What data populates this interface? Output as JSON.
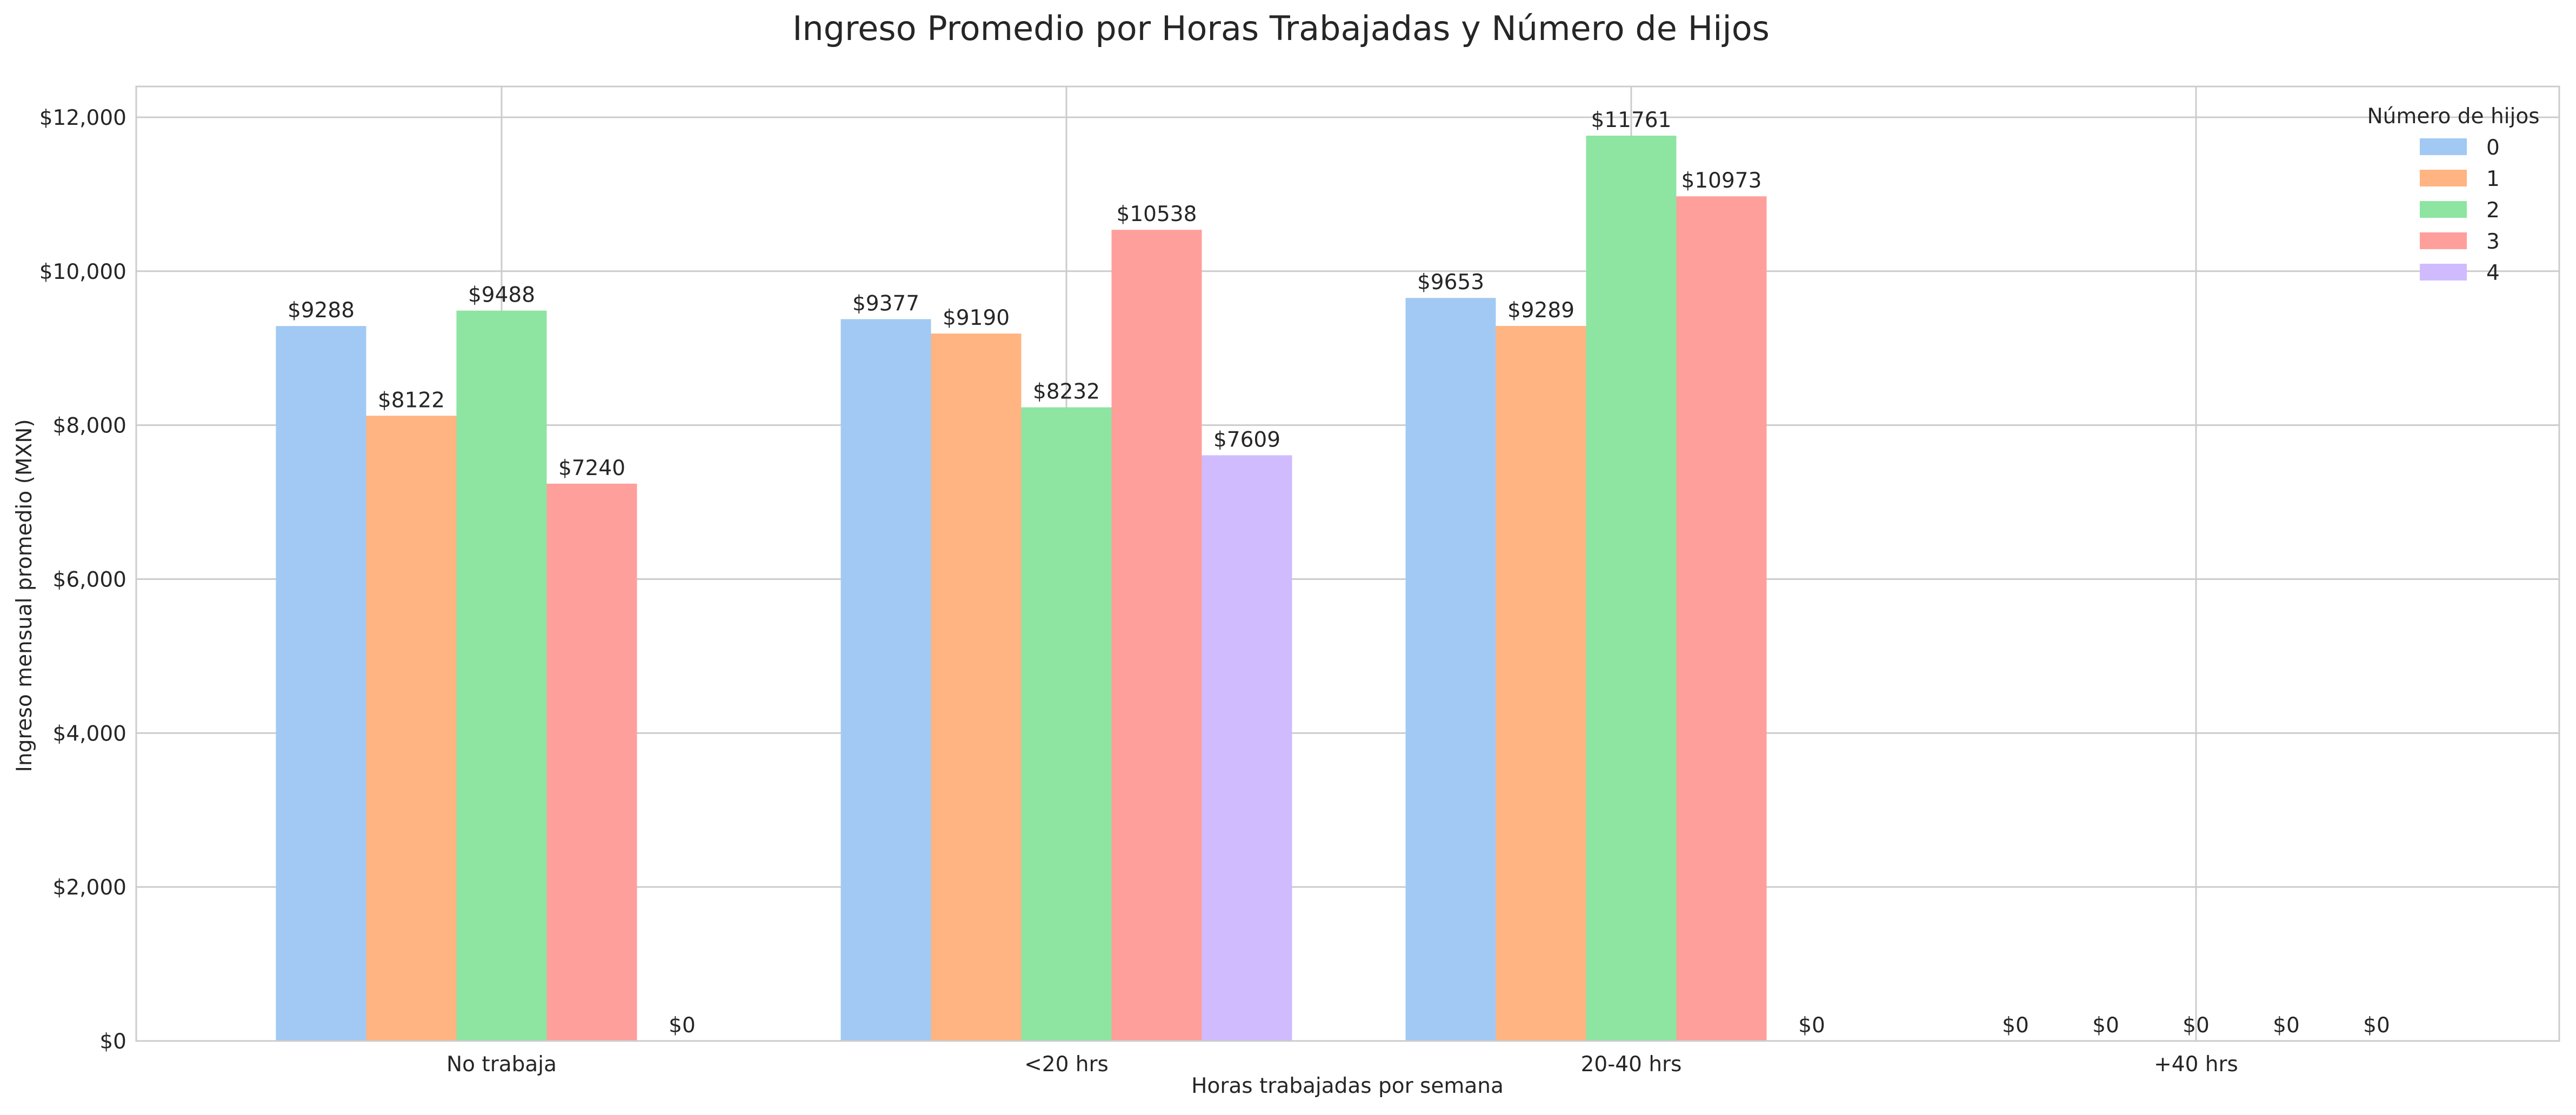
{
  "chart_data": {
    "type": "bar",
    "title": "Ingreso Promedio por Horas Trabajadas y Número de Hijos",
    "xlabel": "Horas trabajadas por semana",
    "ylabel": "Ingreso mensual promedio (MXN)",
    "categories": [
      "No trabaja",
      "<20 hrs",
      "20-40 hrs",
      "+40 hrs"
    ],
    "ylim": [
      0,
      12400
    ],
    "yticks": [
      0,
      2000,
      4000,
      6000,
      8000,
      10000,
      12000
    ],
    "ytick_labels": [
      "$0",
      "$2,000",
      "$4,000",
      "$6,000",
      "$8,000",
      "$10,000",
      "$12,000"
    ],
    "grid": true,
    "legend": {
      "title": "Número de hijos",
      "placement": "top-right"
    },
    "series": [
      {
        "name": "0",
        "color": "#a1c9f4",
        "values": [
          9288,
          9377,
          9653,
          0
        ],
        "labels": [
          "$9288",
          "$9377",
          "$9653",
          "$0"
        ]
      },
      {
        "name": "1",
        "color": "#ffb482",
        "values": [
          8122,
          9190,
          9289,
          0
        ],
        "labels": [
          "$8122",
          "$9190",
          "$9289",
          "$0"
        ]
      },
      {
        "name": "2",
        "color": "#8de5a1",
        "values": [
          9488,
          8232,
          11761,
          0
        ],
        "labels": [
          "$9488",
          "$8232",
          "$11761",
          "$0"
        ]
      },
      {
        "name": "3",
        "color": "#ff9f9b",
        "values": [
          7240,
          10538,
          10973,
          0
        ],
        "labels": [
          "$7240",
          "$10538",
          "$10973",
          "$0"
        ]
      },
      {
        "name": "4",
        "color": "#d0bbff",
        "values": [
          0,
          7609,
          0,
          0
        ],
        "labels": [
          "$0",
          "$7609",
          "$0",
          "$0"
        ]
      }
    ]
  }
}
